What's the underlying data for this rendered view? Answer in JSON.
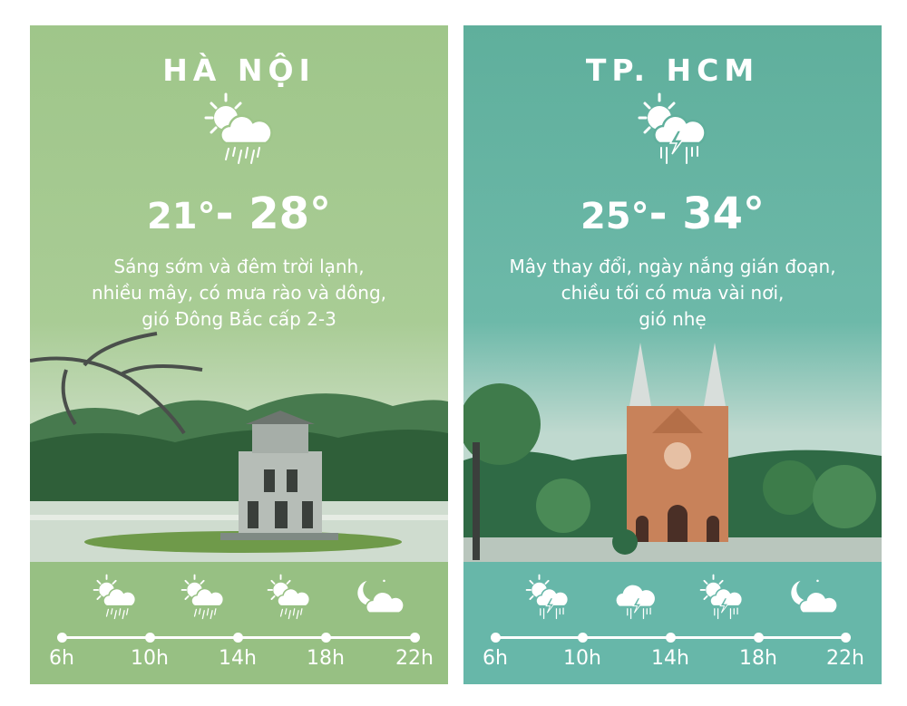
{
  "panels": [
    {
      "city": "HÀ NỘI",
      "icon": "sun-cloud-rain-icon",
      "temp_low": "21°",
      "separator": "-",
      "temp_high": "28°",
      "description": [
        "Sáng sớm và đêm trời lạnh,",
        "nhiều mây, có mưa rào và dông,",
        "gió Đông Bắc cấp 2-3"
      ],
      "background": "#9fc68a",
      "band_color": "#97c083",
      "hours": [
        "6h",
        "10h",
        "14h",
        "18h",
        "22h"
      ],
      "forecast_icons": [
        "sun-cloud-rain-icon",
        "sun-cloud-rain-icon",
        "sun-cloud-rain-icon",
        "moon-cloud-icon"
      ]
    },
    {
      "city": "TP. HCM",
      "icon": "sun-cloud-storm-icon",
      "temp_low": "25°",
      "separator": "-",
      "temp_high": "34°",
      "description": [
        "Mây thay đổi, ngày nắng gián đoạn,",
        "chiều tối có mưa vài nơi,",
        "gió nhẹ"
      ],
      "background": "#5faf9c",
      "band_color": "#67b7a9",
      "hours": [
        "6h",
        "10h",
        "14h",
        "18h",
        "22h"
      ],
      "forecast_icons": [
        "sun-cloud-storm-icon",
        "cloud-storm-icon",
        "sun-cloud-storm-icon",
        "moon-cloud-icon"
      ]
    }
  ]
}
